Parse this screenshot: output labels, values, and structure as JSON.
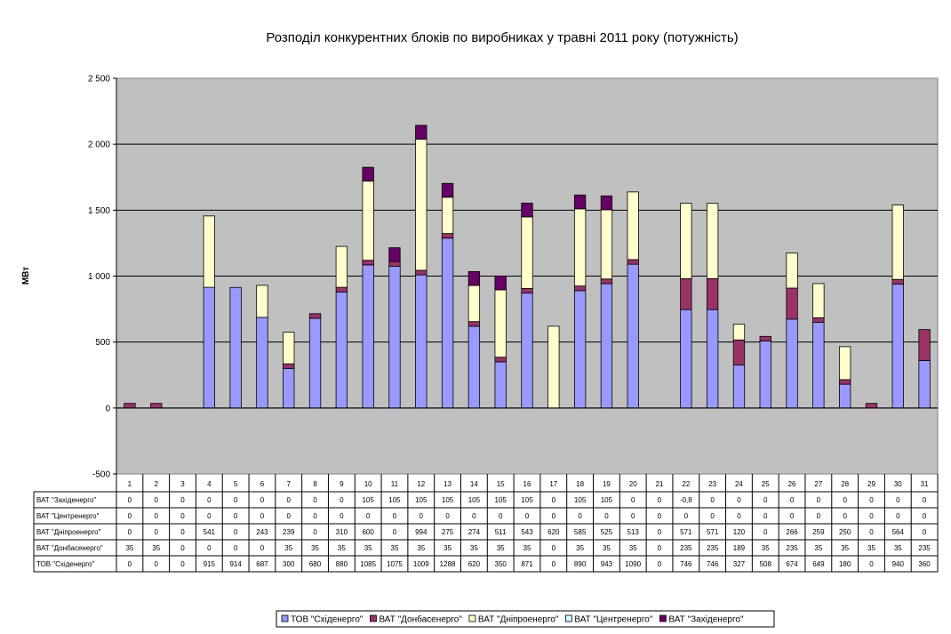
{
  "chart_data": {
    "type": "bar",
    "stacked": true,
    "title": "Розподіл конкурентних блоків по виробниках у травні 2011 року (потужність)",
    "ylabel": "МВт",
    "ylim": [
      -500,
      2500
    ],
    "yticks": [
      "-500",
      "0",
      "500",
      "1 000",
      "1 500",
      "2 000",
      "2 500"
    ],
    "ytick_values": [
      -500,
      0,
      500,
      1000,
      1500,
      2000,
      2500
    ],
    "grid": true,
    "legend_position": "bottom",
    "categories": [
      "1",
      "2",
      "3",
      "4",
      "5",
      "6",
      "7",
      "8",
      "9",
      "10",
      "11",
      "12",
      "13",
      "14",
      "15",
      "16",
      "17",
      "18",
      "19",
      "20",
      "21",
      "22",
      "23",
      "24",
      "25",
      "26",
      "27",
      "28",
      "29",
      "30",
      "31"
    ],
    "series": [
      {
        "name": "ТОВ \"Східенерго\"",
        "color": "#9999ff",
        "values": [
          0,
          0,
          0,
          915,
          914,
          687,
          300,
          680,
          880,
          1085,
          1075,
          1009,
          1288,
          620,
          350,
          871,
          0,
          890,
          943,
          1090,
          0,
          746,
          746,
          327,
          508,
          674,
          649,
          180,
          0,
          940,
          360
        ],
        "labels": [
          "0",
          "0",
          "0",
          "915",
          "914",
          "687",
          "300",
          "680",
          "880",
          "1085",
          "1075",
          "1009",
          "1288",
          "620",
          "350",
          "871",
          "0",
          "890",
          "943",
          "1090",
          "0",
          "746",
          "746",
          "327",
          "508",
          "674",
          "649",
          "180",
          "0",
          "940",
          "360"
        ]
      },
      {
        "name": "ВАТ \"Донбасенерго\"",
        "color": "#993366",
        "values": [
          35,
          35,
          0,
          0,
          0,
          0,
          35,
          35,
          35,
          35,
          35,
          35,
          35,
          35,
          35,
          35,
          0,
          35,
          35,
          35,
          0,
          235,
          235,
          189,
          35,
          235,
          35,
          35,
          35,
          35,
          235
        ],
        "labels": [
          "35",
          "35",
          "0",
          "0",
          "0",
          "0",
          "35",
          "35",
          "35",
          "35",
          "35",
          "35",
          "35",
          "35",
          "35",
          "35",
          "0",
          "35",
          "35",
          "35",
          "0",
          "235",
          "235",
          "189",
          "35",
          "235",
          "35",
          "35",
          "35",
          "35",
          "235"
        ]
      },
      {
        "name": "ВАТ \"Дніпроенерго\"",
        "color": "#ffffcc",
        "values": [
          0,
          0,
          0,
          541,
          0,
          243,
          239,
          0,
          310,
          600,
          0,
          994,
          275,
          274,
          511,
          543,
          620,
          585,
          525,
          513,
          0,
          571,
          571,
          120,
          0,
          266,
          259,
          250,
          0,
          564,
          0
        ],
        "labels": [
          "0",
          "0",
          "0",
          "541",
          "0",
          "243",
          "239",
          "0",
          "310",
          "600",
          "0",
          "994",
          "275",
          "274",
          "511",
          "543",
          "620",
          "585",
          "525",
          "513",
          "0",
          "571",
          "571",
          "120",
          "0",
          "266",
          "259",
          "250",
          "0",
          "564",
          "0"
        ]
      },
      {
        "name": "ВАТ \"Центренерго\"",
        "color": "#ccffff",
        "values": [
          0,
          0,
          0,
          0,
          0,
          0,
          0,
          0,
          0,
          0,
          0,
          0,
          0,
          0,
          0,
          0,
          0,
          0,
          0,
          0,
          0,
          0,
          0,
          0,
          0,
          0,
          0,
          0,
          0,
          0,
          0
        ],
        "labels": [
          "0",
          "0",
          "0",
          "0",
          "0",
          "0",
          "0",
          "0",
          "0",
          "0",
          "0",
          "0",
          "0",
          "0",
          "0",
          "0",
          "0",
          "0",
          "0",
          "0",
          "0",
          "0",
          "0",
          "0",
          "0",
          "0",
          "0",
          "0",
          "0",
          "0",
          "0"
        ]
      },
      {
        "name": "ВАТ \"Західенерго\"",
        "color": "#660066",
        "values": [
          0,
          0,
          0,
          0,
          0,
          0,
          0,
          0,
          0,
          105,
          105,
          105,
          105,
          105,
          105,
          105,
          0,
          105,
          105,
          0,
          0,
          -0.8,
          0,
          0,
          0,
          0,
          0,
          0,
          0,
          0,
          0
        ],
        "labels": [
          "0",
          "0",
          "0",
          "0",
          "0",
          "0",
          "0",
          "0",
          "0",
          "105",
          "105",
          "105",
          "105",
          "105",
          "105",
          "105",
          "0",
          "105",
          "105",
          "0",
          "0",
          "-0,8",
          "0",
          "0",
          "0",
          "0",
          "0",
          "0",
          "0",
          "0",
          "0"
        ]
      }
    ],
    "table_row_order": [
      4,
      3,
      2,
      1,
      0
    ],
    "legend_order": [
      0,
      1,
      2,
      3,
      4
    ]
  }
}
